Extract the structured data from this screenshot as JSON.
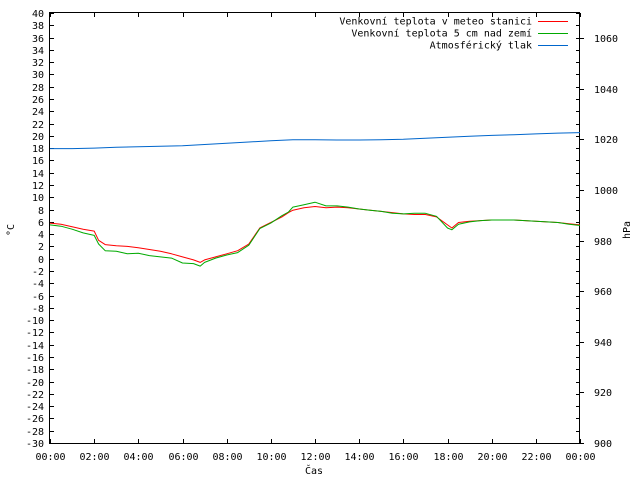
{
  "chart_data": {
    "type": "line",
    "title": "",
    "xlabel": "Čas",
    "ylabel_left": "°C",
    "ylabel_right": "hPa",
    "legend_position": "top-right",
    "grid": false,
    "x_ticks": [
      "00:00",
      "02:00",
      "04:00",
      "06:00",
      "08:00",
      "10:00",
      "12:00",
      "14:00",
      "16:00",
      "18:00",
      "20:00",
      "22:00",
      "00:00"
    ],
    "x_range_hours": [
      0,
      24
    ],
    "y_left_range": [
      -30,
      40
    ],
    "y_left_ticks": [
      "40",
      "38",
      "36",
      "34",
      "32",
      "30",
      "28",
      "26",
      "24",
      "22",
      "20",
      "18",
      "16",
      "14",
      "12",
      "10",
      "8",
      "6",
      "4",
      "2",
      "0",
      "-2",
      "-4",
      "-6",
      "-8",
      "-10",
      "-12",
      "-14",
      "-16",
      "-18",
      "-20",
      "-22",
      "-24",
      "-26",
      "-28",
      "-30"
    ],
    "y_right_range": [
      900,
      1070
    ],
    "y_right_ticks": [
      "1060",
      "1040",
      "1020",
      "1000",
      "980",
      "960",
      "940",
      "920",
      "900"
    ],
    "series": [
      {
        "name": "Venkovní teplota v meteo stanici",
        "axis": "left",
        "color": "#ff0000",
        "x": [
          0,
          0.5,
          1,
          1.5,
          2,
          2.2,
          2.5,
          3,
          3.5,
          4,
          4.5,
          5,
          5.5,
          6,
          6.5,
          6.8,
          7,
          7.5,
          8,
          8.5,
          9,
          9.5,
          10,
          10.5,
          10.8,
          11,
          11.5,
          12,
          12.5,
          13,
          13.5,
          14,
          14.5,
          15,
          15.5,
          16,
          16.5,
          17,
          17.5,
          18,
          18.2,
          18.5,
          19,
          19.5,
          20,
          20.5,
          21,
          21.5,
          22,
          22.5,
          23,
          23.5,
          24
        ],
        "y": [
          5.8,
          5.6,
          5.2,
          4.8,
          4.5,
          3.0,
          2.3,
          2.1,
          2.0,
          1.8,
          1.5,
          1.2,
          0.8,
          0.3,
          -0.2,
          -0.6,
          -0.2,
          0.3,
          0.8,
          1.3,
          2.4,
          5.0,
          5.9,
          6.8,
          7.5,
          7.9,
          8.3,
          8.5,
          8.3,
          8.4,
          8.3,
          8.1,
          7.9,
          7.7,
          7.5,
          7.3,
          7.2,
          7.2,
          6.8,
          5.5,
          5.0,
          5.9,
          6.1,
          6.2,
          6.3,
          6.3,
          6.3,
          6.2,
          6.1,
          6.0,
          5.9,
          5.7,
          5.5
        ]
      },
      {
        "name": "Venkovní teplota 5 cm nad zemí",
        "axis": "left",
        "color": "#00aa00",
        "x": [
          0,
          0.5,
          1,
          1.5,
          2,
          2.2,
          2.5,
          3,
          3.5,
          4,
          4.5,
          5,
          5.5,
          6,
          6.5,
          6.8,
          7,
          7.5,
          8,
          8.5,
          9,
          9.5,
          10,
          10.5,
          10.8,
          11,
          11.5,
          12,
          12.5,
          13,
          13.5,
          14,
          14.5,
          15,
          15.5,
          16,
          16.5,
          17,
          17.5,
          18,
          18.2,
          18.5,
          19,
          19.5,
          20,
          20.5,
          21,
          21.5,
          22,
          22.5,
          23,
          23.5,
          24
        ],
        "y": [
          5.5,
          5.3,
          4.8,
          4.2,
          3.8,
          2.4,
          1.3,
          1.2,
          0.8,
          0.9,
          0.5,
          0.3,
          0.1,
          -0.7,
          -0.8,
          -1.2,
          -0.6,
          0.1,
          0.6,
          1.0,
          2.2,
          4.9,
          5.8,
          7.0,
          7.6,
          8.4,
          8.8,
          9.2,
          8.6,
          8.6,
          8.4,
          8.1,
          7.9,
          7.7,
          7.4,
          7.3,
          7.4,
          7.4,
          6.9,
          5.0,
          4.7,
          5.6,
          6.0,
          6.2,
          6.3,
          6.3,
          6.3,
          6.2,
          6.1,
          6.0,
          5.9,
          5.6,
          5.4
        ]
      },
      {
        "name": "Atmosférický tlak",
        "axis": "right",
        "color": "#0066cc",
        "x": [
          0,
          1,
          2,
          3,
          4,
          5,
          6,
          7,
          8,
          9,
          10,
          11,
          12,
          13,
          14,
          15,
          16,
          17,
          18,
          19,
          20,
          21,
          22,
          23,
          24
        ],
        "y": [
          1016.4,
          1016.4,
          1016.6,
          1016.9,
          1017.1,
          1017.3,
          1017.5,
          1018.0,
          1018.5,
          1019.0,
          1019.5,
          1019.9,
          1019.9,
          1019.8,
          1019.8,
          1019.9,
          1020.1,
          1020.5,
          1020.9,
          1021.3,
          1021.6,
          1021.9,
          1022.2,
          1022.5,
          1022.7
        ]
      }
    ]
  }
}
